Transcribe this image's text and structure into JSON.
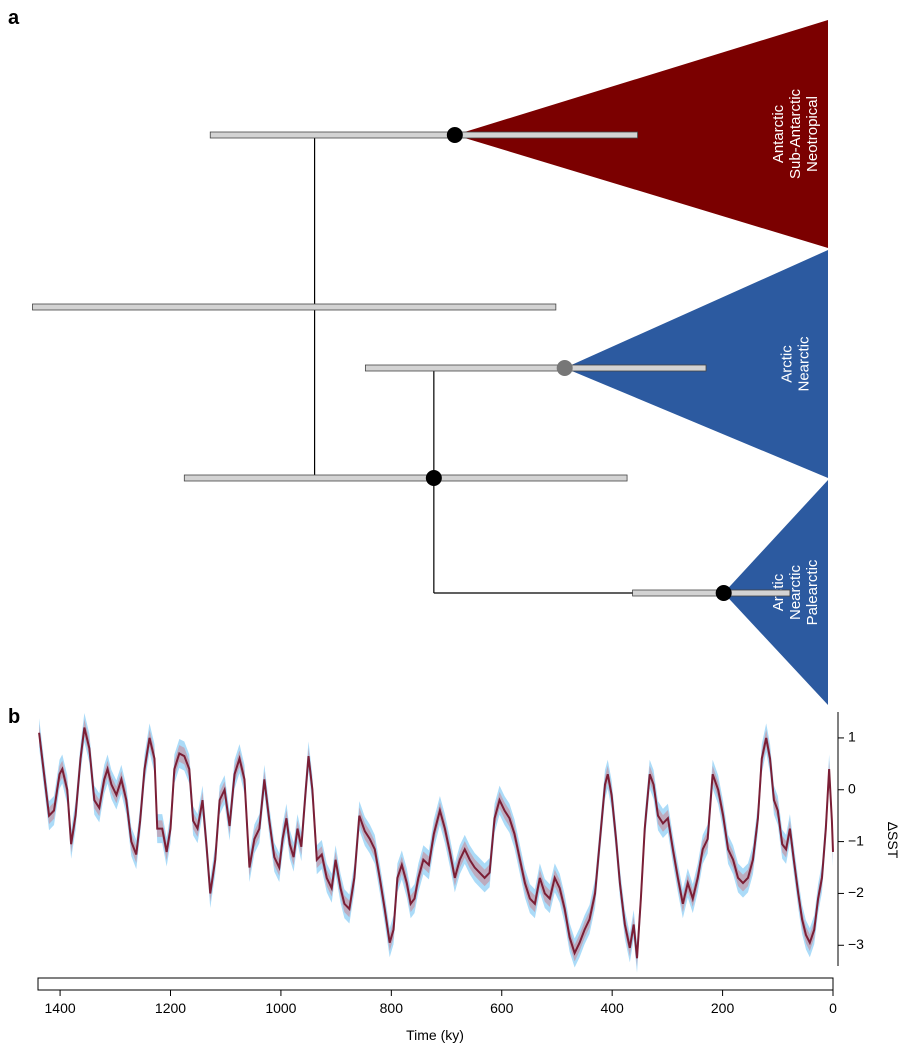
{
  "panel_labels": [
    "a",
    "b"
  ],
  "tree": {
    "color_bar": "#d3d3d3",
    "nodes": [
      {
        "age": 939,
        "ci": [
          1450,
          502
        ],
        "dot": null,
        "children": [
          1,
          2
        ]
      },
      {
        "age": 685,
        "ci": [
          1128,
          354
        ],
        "dot": "#000000",
        "clade": 0
      },
      {
        "age": 723,
        "ci": [
          1175,
          373
        ],
        "dot": "#000000",
        "children": [
          3,
          4
        ]
      },
      {
        "age": 486,
        "ci": [
          847,
          230
        ],
        "dot": "#777777",
        "clade": 1
      },
      {
        "age": 198,
        "ci": [
          363,
          78
        ],
        "dot": "#000000",
        "clade": 2
      }
    ],
    "clades": [
      {
        "color": "#7b0000",
        "lines": [
          "Antarctic",
          "Sub-Antarctic",
          "Neotropical"
        ]
      },
      {
        "color": "#2c5aa0",
        "lines": [
          "Arctic",
          "Nearctic"
        ]
      },
      {
        "color": "#2c5aa0",
        "lines": [
          "Arctic",
          "Nearctic",
          "Palearctic"
        ]
      }
    ]
  },
  "chart_data": {
    "type": "line",
    "xlabel": "Time (ky)",
    "ylabel": "ΔSST",
    "xlim": [
      1440,
      0
    ],
    "xticks": [
      1400,
      1200,
      1000,
      800,
      600,
      400,
      200,
      0
    ],
    "ylim": [
      -3.4,
      1.5
    ],
    "yticks": [
      1,
      0,
      {
        "value": -1,
        "label": "−1"
      },
      {
        "value": -2,
        "label": "−2"
      },
      {
        "value": -3,
        "label": "−3"
      }
    ],
    "bands": [
      {
        "color": "#8fcff5",
        "halfwidth": 0.28
      },
      {
        "color": "#c98a98",
        "halfwidth": 0.16
      }
    ],
    "series": [
      {
        "color": "#7b1e35",
        "x": [
          1438,
          1429,
          1420,
          1411,
          1401,
          1396,
          1387,
          1380,
          1372,
          1363,
          1356,
          1347,
          1338,
          1329,
          1320,
          1314,
          1307,
          1298,
          1289,
          1280,
          1271,
          1262,
          1255,
          1247,
          1238,
          1229,
          1224,
          1215,
          1207,
          1200,
          1193,
          1184,
          1175,
          1166,
          1159,
          1151,
          1142,
          1135,
          1128,
          1119,
          1111,
          1102,
          1093,
          1084,
          1075,
          1066,
          1057,
          1048,
          1039,
          1030,
          1021,
          1012,
          1003,
          997,
          990,
          984,
          977,
          970,
          963,
          955,
          950,
          943,
          935,
          926,
          917,
          908,
          901,
          892,
          885,
          876,
          867,
          858,
          848,
          839,
          830,
          821,
          812,
          803,
          796,
          789,
          781,
          772,
          765,
          758,
          751,
          742,
          732,
          723,
          712,
          703,
          694,
          685,
          676,
          667,
          658,
          649,
          640,
          631,
          622,
          613,
          604,
          595,
          586,
          577,
          567,
          558,
          549,
          540,
          531,
          522,
          513,
          504,
          495,
          486,
          477,
          468,
          459,
          450,
          441,
          431,
          422,
          413,
          408,
          401,
          393,
          386,
          377,
          368,
          361,
          355,
          348,
          341,
          332,
          325,
          317,
          308,
          299,
          290,
          281,
          272,
          263,
          254,
          245,
          236,
          227,
          218,
          208,
          199,
          190,
          181,
          172,
          163,
          154,
          145,
          136,
          129,
          121,
          114,
          107,
          100,
          92,
          85,
          78,
          71,
          63,
          56,
          49,
          42,
          34,
          27,
          20,
          13,
          7,
          2,
          0
        ],
        "values": [
          1.1,
          0.3,
          -0.5,
          -0.4,
          0.3,
          0.4,
          0,
          -1.05,
          -0.5,
          0.6,
          1.2,
          0.8,
          -0.2,
          -0.35,
          0.2,
          0.4,
          0.1,
          -0.1,
          0.2,
          -0.2,
          -1,
          -1.25,
          -0.6,
          0.4,
          1.0,
          0.6,
          -0.75,
          -0.75,
          -1.2,
          -0.75,
          0.4,
          0.7,
          0.65,
          0.4,
          -0.6,
          -0.75,
          -0.2,
          -1.05,
          -2,
          -1.35,
          -0.2,
          0,
          -0.7,
          0.3,
          0.6,
          0.2,
          -1.5,
          -0.95,
          -0.75,
          0.2,
          -0.6,
          -1.3,
          -1.5,
          -0.95,
          -0.55,
          -1.05,
          -1.3,
          -0.75,
          -1.1,
          0,
          0.65,
          0,
          -1.35,
          -1.25,
          -1.7,
          -1.9,
          -1.35,
          -1.9,
          -2.2,
          -2.3,
          -1.7,
          -0.5,
          -0.8,
          -0.95,
          -1.15,
          -1.7,
          -2.3,
          -2.95,
          -2.7,
          -1.7,
          -1.45,
          -1.8,
          -2.2,
          -2.1,
          -1.7,
          -1.35,
          -1.45,
          -0.85,
          -0.4,
          -0.75,
          -1.2,
          -1.7,
          -1.35,
          -1.15,
          -1.35,
          -1.5,
          -1.6,
          -1.7,
          -1.6,
          -0.55,
          -0.2,
          -0.4,
          -0.55,
          -0.85,
          -1.35,
          -1.8,
          -2.1,
          -2.2,
          -1.7,
          -2.0,
          -2.1,
          -1.7,
          -1.9,
          -2.3,
          -2.85,
          -3.15,
          -2.95,
          -2.7,
          -2.5,
          -2.0,
          -0.95,
          0.1,
          0.3,
          -0.1,
          -0.95,
          -1.8,
          -2.6,
          -3.05,
          -2.6,
          -3.25,
          -2.1,
          -0.75,
          0.3,
          0.1,
          -0.5,
          -0.65,
          -0.55,
          -1.15,
          -1.7,
          -2.2,
          -1.8,
          -2.1,
          -1.7,
          -1.15,
          -0.95,
          0.3,
          0,
          -0.5,
          -1.15,
          -1.35,
          -1.7,
          -1.8,
          -1.7,
          -1.35,
          -0.55,
          0.6,
          1.0,
          0.6,
          -0.2,
          -0.4,
          -1.05,
          -1.15,
          -0.75,
          -1.35,
          -2.0,
          -2.5,
          -2.8,
          -2.95,
          -2.7,
          -2.1,
          -1.7,
          -0.75,
          0.4,
          -0.6,
          -1.2
        ]
      }
    ]
  }
}
